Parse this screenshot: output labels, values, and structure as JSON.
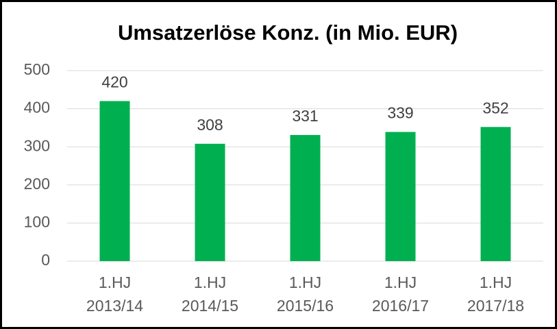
{
  "chart_data": {
    "type": "bar",
    "title": "Umsatzerlöse Konz. (in Mio. EUR)",
    "categories": [
      [
        "1.HJ",
        "2013/14"
      ],
      [
        "1.HJ",
        "2014/15"
      ],
      [
        "1.HJ",
        "2015/16"
      ],
      [
        "1.HJ",
        "2016/17"
      ],
      [
        "1.HJ",
        "2017/18"
      ]
    ],
    "values": [
      420,
      308,
      331,
      339,
      352
    ],
    "color": "#00b050",
    "ylim": [
      0,
      500
    ],
    "yticks": [
      0,
      100,
      200,
      300,
      400,
      500
    ],
    "grid": true
  }
}
